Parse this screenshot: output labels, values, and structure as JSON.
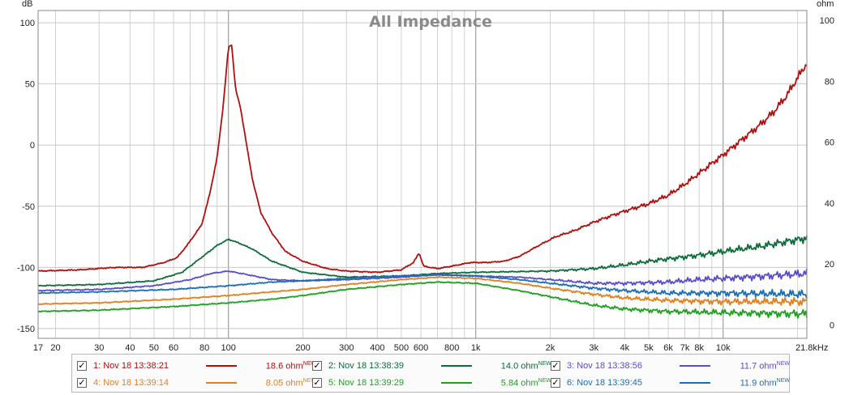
{
  "chart_data": {
    "type": "line",
    "title": "All Impedance",
    "left_unit": "dB",
    "right_unit": "ohm",
    "x_scale": "log",
    "xlim": [
      17,
      21800
    ],
    "ylim_left": [
      -158,
      110
    ],
    "ylim_right": [
      -4.4,
      103.2
    ],
    "grid": true,
    "x_tick_labels": [
      {
        "v": 17,
        "t": "17"
      },
      {
        "v": 20,
        "t": "20"
      },
      {
        "v": 30,
        "t": "30"
      },
      {
        "v": 40,
        "t": "40"
      },
      {
        "v": 50,
        "t": "50"
      },
      {
        "v": 60,
        "t": "60"
      },
      {
        "v": 80,
        "t": "80"
      },
      {
        "v": 100,
        "t": "100"
      },
      {
        "v": 200,
        "t": "200"
      },
      {
        "v": 300,
        "t": "300"
      },
      {
        "v": 400,
        "t": "400"
      },
      {
        "v": 500,
        "t": "500"
      },
      {
        "v": 600,
        "t": "600"
      },
      {
        "v": 800,
        "t": "800"
      },
      {
        "v": 1000,
        "t": "1k"
      },
      {
        "v": 2000,
        "t": "2k"
      },
      {
        "v": 3000,
        "t": "3k"
      },
      {
        "v": 4000,
        "t": "4k"
      },
      {
        "v": 5000,
        "t": "5k"
      },
      {
        "v": 6000,
        "t": "6k"
      },
      {
        "v": 7000,
        "t": "7k"
      },
      {
        "v": 8000,
        "t": "8k"
      },
      {
        "v": 10000,
        "t": "10k"
      },
      {
        "v": 21800,
        "t": "21.8kHz"
      }
    ],
    "y_left_ticks": [
      {
        "v": 100,
        "t": "100"
      },
      {
        "v": 50,
        "t": "50"
      },
      {
        "v": 0,
        "t": "0"
      },
      {
        "v": -50,
        "t": "-50"
      },
      {
        "v": -100,
        "t": "-100"
      },
      {
        "v": -150,
        "t": "-150"
      }
    ],
    "y_right_ticks": [
      {
        "v": 100,
        "t": "100"
      },
      {
        "v": 80,
        "t": "80"
      },
      {
        "v": 60,
        "t": "60"
      },
      {
        "v": 40,
        "t": "40"
      },
      {
        "v": 20,
        "t": "20"
      },
      {
        "v": 0,
        "t": "0"
      }
    ],
    "series": [
      {
        "name": "1: Nov 18 13:38:21",
        "value": "18.6 ohm",
        "color": "#b01010",
        "points": [
          [
            17,
            -103
          ],
          [
            25,
            -102
          ],
          [
            35,
            -100
          ],
          [
            45,
            -100
          ],
          [
            55,
            -96
          ],
          [
            62,
            -92
          ],
          [
            68,
            -82
          ],
          [
            72,
            -75
          ],
          [
            78,
            -65
          ],
          [
            84,
            -40
          ],
          [
            90,
            -10
          ],
          [
            95,
            30
          ],
          [
            100,
            80
          ],
          [
            103,
            82
          ],
          [
            107,
            45
          ],
          [
            112,
            30
          ],
          [
            118,
            2
          ],
          [
            125,
            -28
          ],
          [
            135,
            -55
          ],
          [
            150,
            -72
          ],
          [
            170,
            -87
          ],
          [
            200,
            -95
          ],
          [
            250,
            -101
          ],
          [
            300,
            -103
          ],
          [
            400,
            -104
          ],
          [
            500,
            -102
          ],
          [
            560,
            -96
          ],
          [
            590,
            -88
          ],
          [
            615,
            -99
          ],
          [
            700,
            -101
          ],
          [
            850,
            -98
          ],
          [
            950,
            -96
          ],
          [
            1100,
            -96
          ],
          [
            1300,
            -95
          ],
          [
            1500,
            -91
          ],
          [
            1800,
            -82
          ],
          [
            2100,
            -75
          ],
          [
            2500,
            -70
          ],
          [
            3000,
            -63
          ],
          [
            3500,
            -58
          ],
          [
            4000,
            -54
          ],
          [
            5000,
            -48
          ],
          [
            6000,
            -41
          ],
          [
            7000,
            -32
          ],
          [
            8000,
            -23
          ],
          [
            9000,
            -15
          ],
          [
            10000,
            -8
          ],
          [
            12000,
            5
          ],
          [
            14000,
            16
          ],
          [
            16000,
            27
          ],
          [
            18000,
            40
          ],
          [
            20000,
            55
          ],
          [
            21800,
            67
          ]
        ]
      },
      {
        "name": "2: Nov 18 13:38:39",
        "value": "14.0 ohm",
        "color": "#0e6d3a",
        "points": [
          [
            17,
            -115
          ],
          [
            30,
            -114
          ],
          [
            50,
            -111
          ],
          [
            65,
            -104
          ],
          [
            80,
            -90
          ],
          [
            90,
            -82
          ],
          [
            100,
            -77
          ],
          [
            110,
            -80
          ],
          [
            125,
            -85
          ],
          [
            150,
            -95
          ],
          [
            200,
            -104
          ],
          [
            300,
            -108
          ],
          [
            500,
            -107
          ],
          [
            700,
            -105
          ],
          [
            1000,
            -104
          ],
          [
            2000,
            -103
          ],
          [
            3000,
            -101
          ],
          [
            4000,
            -98
          ],
          [
            5000,
            -95
          ],
          [
            6000,
            -93
          ],
          [
            8000,
            -90
          ],
          [
            10000,
            -87
          ],
          [
            14000,
            -83
          ],
          [
            18000,
            -79
          ],
          [
            21800,
            -76
          ]
        ]
      },
      {
        "name": "3: Nov 18 13:38:56",
        "value": "11.7 ohm",
        "color": "#5a4ec8",
        "points": [
          [
            17,
            -119
          ],
          [
            30,
            -118
          ],
          [
            50,
            -115
          ],
          [
            70,
            -110
          ],
          [
            85,
            -105
          ],
          [
            100,
            -103
          ],
          [
            120,
            -106
          ],
          [
            150,
            -110
          ],
          [
            200,
            -111
          ],
          [
            300,
            -110
          ],
          [
            500,
            -108
          ],
          [
            700,
            -106
          ],
          [
            1000,
            -107
          ],
          [
            1500,
            -108
          ],
          [
            2000,
            -110
          ],
          [
            3000,
            -113
          ],
          [
            4000,
            -113
          ],
          [
            6000,
            -112
          ],
          [
            8000,
            -110
          ],
          [
            10000,
            -109
          ],
          [
            15000,
            -107
          ],
          [
            21800,
            -105
          ]
        ]
      },
      {
        "name": "4: Nov 18 13:39:14",
        "value": "8.05 ohm",
        "color": "#e0801e",
        "points": [
          [
            17,
            -130
          ],
          [
            30,
            -129
          ],
          [
            60,
            -126
          ],
          [
            100,
            -123
          ],
          [
            150,
            -120
          ],
          [
            200,
            -118
          ],
          [
            300,
            -114
          ],
          [
            500,
            -110
          ],
          [
            700,
            -108
          ],
          [
            1000,
            -109
          ],
          [
            1500,
            -113
          ],
          [
            2000,
            -117
          ],
          [
            3000,
            -122
          ],
          [
            4000,
            -125
          ],
          [
            6000,
            -127
          ],
          [
            10000,
            -128
          ],
          [
            21800,
            -128
          ]
        ]
      },
      {
        "name": "5: Nov 18 13:39:29",
        "value": "5.84 ohm",
        "color": "#20a020",
        "points": [
          [
            17,
            -136
          ],
          [
            30,
            -135
          ],
          [
            60,
            -132
          ],
          [
            100,
            -129
          ],
          [
            150,
            -126
          ],
          [
            200,
            -123
          ],
          [
            300,
            -118
          ],
          [
            500,
            -114
          ],
          [
            700,
            -112
          ],
          [
            1000,
            -113
          ],
          [
            1500,
            -119
          ],
          [
            2000,
            -124
          ],
          [
            3000,
            -131
          ],
          [
            4000,
            -134
          ],
          [
            6000,
            -136
          ],
          [
            10000,
            -137
          ],
          [
            21800,
            -138
          ]
        ]
      },
      {
        "name": "6: Nov 18 13:39:45",
        "value": "11.9 ohm",
        "color": "#1a6eb8",
        "points": [
          [
            17,
            -121
          ],
          [
            30,
            -120
          ],
          [
            60,
            -118
          ],
          [
            100,
            -115
          ],
          [
            150,
            -112
          ],
          [
            200,
            -111
          ],
          [
            300,
            -109
          ],
          [
            500,
            -107
          ],
          [
            700,
            -106
          ],
          [
            1000,
            -107
          ],
          [
            1500,
            -110
          ],
          [
            2000,
            -113
          ],
          [
            3000,
            -117
          ],
          [
            4000,
            -119
          ],
          [
            6000,
            -121
          ],
          [
            10000,
            -121
          ],
          [
            21800,
            -122
          ]
        ]
      }
    ]
  },
  "legend_new_badge": "NEW",
  "legend_check_glyph": "✓"
}
